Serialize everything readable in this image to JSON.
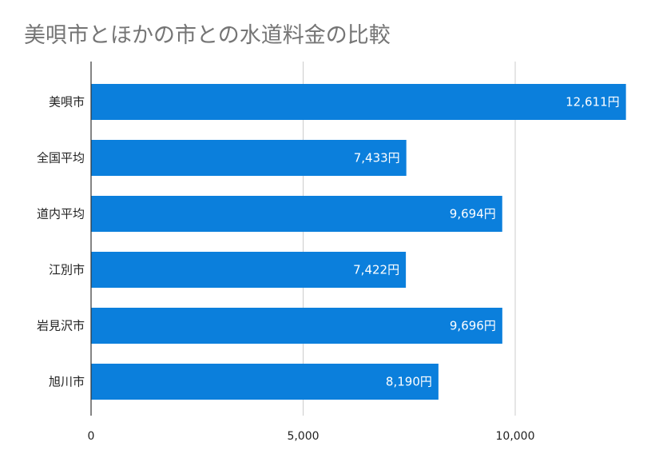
{
  "chart_data": {
    "type": "bar",
    "orientation": "horizontal",
    "title": "美唄市とほかの市との水道料金の比較",
    "categories": [
      "美唄市",
      "全国平均",
      "道内平均",
      "江別市",
      "岩見沢市",
      "旭川市"
    ],
    "values": [
      12611,
      7433,
      9694,
      7422,
      9696,
      8190
    ],
    "data_labels": [
      "12,611円",
      "7,433円",
      "9,694円",
      "7,422円",
      "9,696円",
      "8,190円"
    ],
    "x_ticks": [
      "0",
      "5,000",
      "10,000"
    ],
    "x_tick_values": [
      0,
      5000,
      10000
    ],
    "xlim": [
      0,
      13000
    ],
    "grid": true,
    "bar_color": "#0b7fdc",
    "grid_color": "#cccccc",
    "axis_color": "#333333"
  }
}
